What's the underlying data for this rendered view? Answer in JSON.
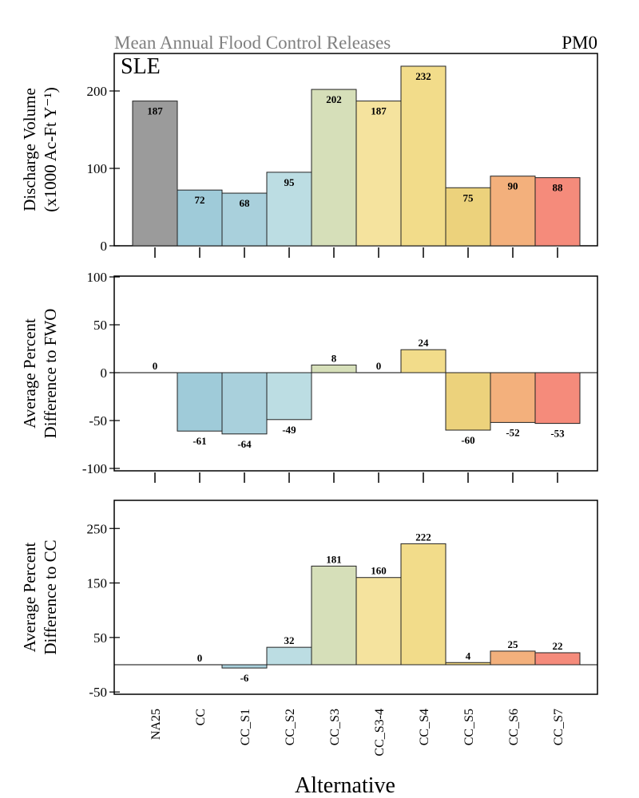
{
  "header": {
    "title": "Mean Annual Flood Control Releases",
    "tag": "PM0",
    "panel_label": "SLE"
  },
  "xlabel": "Alternative",
  "colors": {
    "NA25": "#9b9b9b",
    "CC": "#9fcbd9",
    "CC_S1": "#a9d0dc",
    "CC_S2": "#bcdde3",
    "CC_S3": "#d6dfb9",
    "CC_S3-4": "#f5e39e",
    "CC_S4": "#f2dc8a",
    "CC_S5": "#ecd27c",
    "CC_S6": "#f3b07c",
    "CC_S7": "#f58b7b"
  },
  "chart_data": [
    {
      "type": "bar",
      "ylabel_lines": [
        "Discharge Volume",
        "(x1000 Ac-Ft Y⁻¹)"
      ],
      "categories": [
        "NA25",
        "CC",
        "CC_S1",
        "CC_S2",
        "CC_S3",
        "CC_S3-4",
        "CC_S4",
        "CC_S5",
        "CC_S6",
        "CC_S7"
      ],
      "values": [
        187,
        72,
        68,
        95,
        202,
        187,
        232,
        75,
        90,
        88
      ],
      "ylim": [
        0,
        250
      ],
      "yticks": [
        0,
        100,
        200
      ]
    },
    {
      "type": "bar",
      "ylabel_lines": [
        "Average Percent",
        "Difference to FWO"
      ],
      "categories": [
        "NA25",
        "CC",
        "CC_S1",
        "CC_S2",
        "CC_S3",
        "CC_S3-4",
        "CC_S4",
        "CC_S5",
        "CC_S6",
        "CC_S7"
      ],
      "values": [
        0,
        -61,
        -64,
        -49,
        8,
        0,
        24,
        -60,
        -52,
        -53
      ],
      "ylim": [
        -100,
        100
      ],
      "yticks": [
        -100,
        -50,
        0,
        50,
        100
      ]
    },
    {
      "type": "bar",
      "ylabel_lines": [
        "Average Percent",
        "Difference to CC"
      ],
      "categories": [
        "NA25",
        "CC",
        "CC_S1",
        "CC_S2",
        "CC_S3",
        "CC_S3-4",
        "CC_S4",
        "CC_S5",
        "CC_S6",
        "CC_S7"
      ],
      "values": [
        null,
        0,
        -6,
        32,
        181,
        160,
        222,
        4,
        25,
        22
      ],
      "ylim": [
        -50,
        300
      ],
      "yticks": [
        -50,
        50,
        150,
        250
      ]
    }
  ]
}
